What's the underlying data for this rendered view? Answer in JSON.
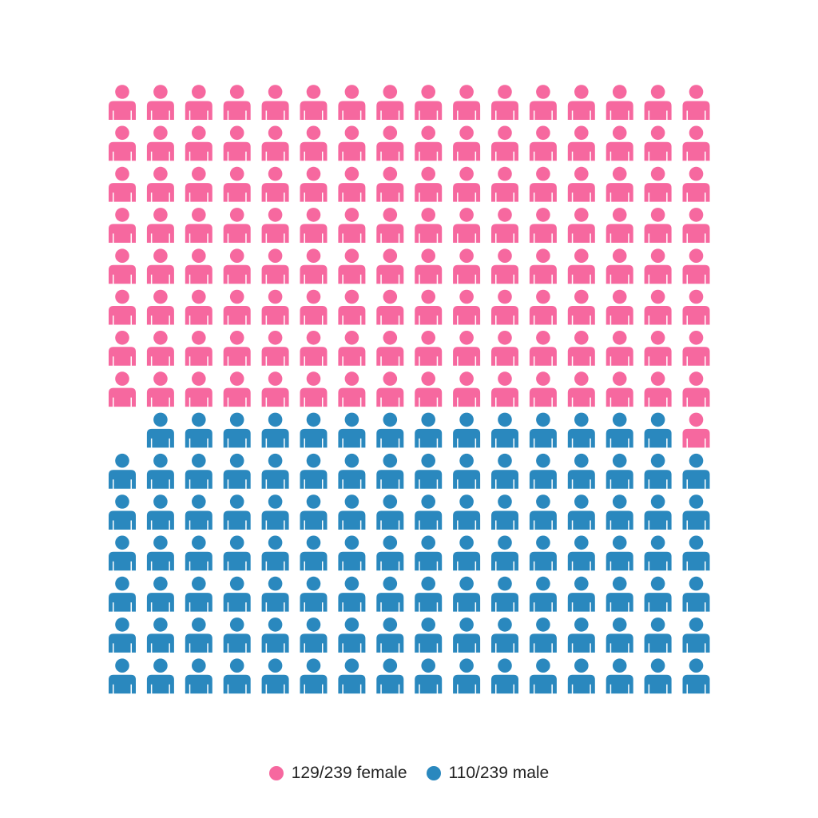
{
  "chart_data": {
    "type": "pictogram",
    "grid": {
      "columns": 16,
      "rows": 15
    },
    "total": 239,
    "fill_order": "row-major from top-left; first series first, remaining series fill toward the end",
    "series": [
      {
        "name": "female",
        "value": 129,
        "color": "#F6689F"
      },
      {
        "name": "male",
        "value": 110,
        "color": "#2A88BE"
      }
    ],
    "icon": "person-icon",
    "legend": {
      "position": "bottom",
      "items": [
        {
          "label": "129/239 female",
          "color": "#F6689F"
        },
        {
          "label": "110/239 male",
          "color": "#2A88BE"
        }
      ]
    }
  }
}
